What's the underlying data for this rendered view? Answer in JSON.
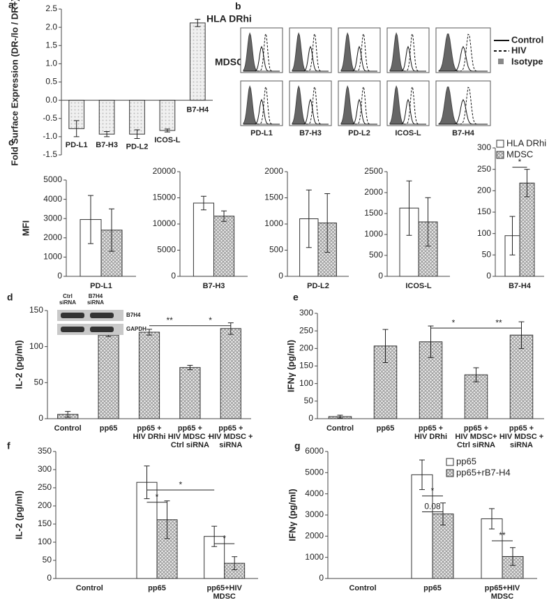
{
  "chart_data": [
    {
      "type": "bar",
      "panel": "a",
      "y_label": "Fold Surface Expression (DR-/lo / DR+)",
      "categories": [
        "PD-L1",
        "B7-H3",
        "PD-L2",
        "ICOS-L",
        "B7-H4"
      ],
      "series": [
        {
          "color": "#bdbdbd",
          "pattern": "dots",
          "values": [
            -0.78,
            -0.93,
            -0.93,
            -0.83,
            2.12
          ],
          "errors": [
            0.22,
            0.07,
            0.12,
            0.04,
            0.1
          ]
        }
      ],
      "ylim": [
        -1.5,
        2.5
      ],
      "yticks": [
        -1.5,
        {
          "value": -1,
          "label": "-1.0"
        },
        -0.5,
        {
          "value": 0,
          "label": "0.0"
        },
        0.5,
        {
          "value": 1,
          "label": "1.0"
        },
        1.5,
        {
          "value": 2,
          "label": "2.0"
        },
        2.5
      ]
    },
    {
      "type": "bar",
      "panel": "c",
      "y_label": "MFI",
      "categories": [
        "PD-L1"
      ],
      "series": [
        {
          "color": "#ffffff",
          "values": [
            2950
          ],
          "errors": [
            1250
          ]
        },
        {
          "color": "#9e9e9e",
          "pattern": "cross",
          "values": [
            2400
          ],
          "errors": [
            1100
          ]
        }
      ],
      "ylim": [
        0,
        5000
      ],
      "yticks": [
        0,
        1000,
        2000,
        3000,
        4000,
        5000
      ]
    },
    {
      "type": "bar",
      "categories": [
        "B7-H3"
      ],
      "series": [
        {
          "color": "#ffffff",
          "values": [
            14000
          ],
          "errors": [
            1300
          ]
        },
        {
          "color": "#9e9e9e",
          "pattern": "cross",
          "values": [
            11500
          ],
          "errors": [
            1000
          ]
        }
      ],
      "ylim": [
        0,
        20000
      ],
      "yticks": [
        0,
        5000,
        10000,
        15000,
        20000
      ]
    },
    {
      "type": "bar",
      "categories": [
        "PD-L2"
      ],
      "series": [
        {
          "color": "#ffffff",
          "values": [
            1100
          ],
          "errors": [
            550
          ]
        },
        {
          "color": "#9e9e9e",
          "pattern": "cross",
          "values": [
            1020
          ],
          "errors": [
            560
          ]
        }
      ],
      "ylim": [
        0,
        2000
      ],
      "yticks": [
        0,
        500,
        1000,
        1500,
        2000
      ]
    },
    {
      "type": "bar",
      "categories": [
        "ICOS-L"
      ],
      "series": [
        {
          "color": "#ffffff",
          "values": [
            1630
          ],
          "errors": [
            650
          ]
        },
        {
          "color": "#9e9e9e",
          "pattern": "cross",
          "values": [
            1300
          ],
          "errors": [
            580
          ]
        }
      ],
      "ylim": [
        0,
        2500
      ],
      "yticks": [
        0,
        500,
        1000,
        1500,
        2000,
        2500
      ]
    },
    {
      "type": "bar",
      "categories": [
        "B7-H4"
      ],
      "series": [
        {
          "name": "HLA DRhi",
          "color": "#ffffff",
          "values": [
            95
          ],
          "errors": [
            45
          ]
        },
        {
          "name": "MDSC",
          "color": "#9e9e9e",
          "pattern": "cross",
          "values": [
            218
          ],
          "errors": [
            32
          ]
        }
      ],
      "ylim": [
        0,
        300
      ],
      "yticks": [
        0,
        50,
        100,
        150,
        200,
        250,
        300
      ],
      "annotations": [
        "*"
      ]
    },
    {
      "type": "bar",
      "panel": "d",
      "y_label": "IL-2 (pg/ml)",
      "categories": [
        "Control",
        "pp65",
        [
          "pp65 +",
          "HIV DRhi"
        ],
        [
          "pp65 +",
          "HIV MDSC +",
          "Ctrl siRNA"
        ],
        [
          "pp65 +",
          "HIV MDSC +",
          "siRNA"
        ]
      ],
      "series": [
        {
          "color": "#9e9e9e",
          "pattern": "cross",
          "values": [
            6,
            116,
            120,
            71,
            125
          ],
          "errors": [
            4,
            2,
            4,
            3,
            8
          ]
        }
      ],
      "ylim": [
        0,
        150
      ],
      "yticks": [
        0,
        50,
        100,
        150
      ],
      "annotations": [
        "**",
        "*"
      ],
      "inset": {
        "columns": [
          [
            "Ctrl",
            "siRNA"
          ],
          [
            "B7H4",
            "siRNA"
          ]
        ],
        "rows": [
          "B7H4",
          "GAPDH"
        ]
      }
    },
    {
      "type": "bar",
      "panel": "e",
      "y_label": "IFNγ (pg/ml)",
      "categories": [
        "Control",
        "pp65",
        [
          "pp65 +",
          "HIV DRhi"
        ],
        [
          "pp65 +",
          "HIV MDSC+",
          "Ctrl siRNA"
        ],
        [
          "pp65 +",
          "HIV MDSC +",
          "siRNA"
        ]
      ],
      "series": [
        {
          "color": "#9e9e9e",
          "pattern": "cross",
          "values": [
            6,
            207,
            219,
            125,
            238
          ],
          "errors": [
            4,
            47,
            45,
            20,
            38
          ]
        }
      ],
      "ylim": [
        0,
        300
      ],
      "yticks": [
        0,
        50,
        100,
        150,
        200,
        250,
        300
      ],
      "annotations": [
        "*",
        "**"
      ]
    },
    {
      "type": "bar",
      "panel": "f",
      "y_label": "IL-2 (pg/ml)",
      "categories": [
        "Control",
        "pp65",
        [
          "pp65+HIV",
          "MDSC"
        ]
      ],
      "series": [
        {
          "color": "#ffffff",
          "values": [
            null,
            265,
            116
          ],
          "errors": [
            null,
            45,
            28
          ]
        },
        {
          "color": "#9e9e9e",
          "pattern": "cross",
          "values": [
            null,
            162,
            42
          ],
          "errors": [
            null,
            52,
            18
          ]
        }
      ],
      "ylim": [
        0,
        350
      ],
      "yticks": [
        0,
        50,
        100,
        150,
        200,
        250,
        300,
        350
      ],
      "annotations": [
        "*",
        "*",
        "*"
      ]
    },
    {
      "type": "bar",
      "panel": "g",
      "y_label": "IFNγ (pg/ml)",
      "categories": [
        "Control",
        "pp65",
        [
          "pp65+HIV",
          "MDSC"
        ]
      ],
      "series": [
        {
          "name": "pp65",
          "color": "#ffffff",
          "values": [
            null,
            4900,
            2820
          ],
          "errors": [
            null,
            700,
            480
          ]
        },
        {
          "name": "pp65+rB7-H4",
          "color": "#9e9e9e",
          "pattern": "cross",
          "values": [
            null,
            3050,
            1040
          ],
          "errors": [
            null,
            520,
            420
          ]
        }
      ],
      "ylim": [
        0,
        6000
      ],
      "yticks": [
        0,
        1000,
        2000,
        3000,
        4000,
        5000,
        6000
      ],
      "annotations": [
        "*",
        "0.08",
        "**"
      ]
    }
  ],
  "flow_panel": {
    "panel": "b",
    "rows": [
      "HLA DRhi",
      "MDSC"
    ],
    "columns": [
      "PD-L1",
      "B7-H3",
      "PD-L2",
      "ICOS-L",
      "B7-H4"
    ],
    "legend": [
      "Control",
      "HIV",
      "Isotype"
    ]
  }
}
